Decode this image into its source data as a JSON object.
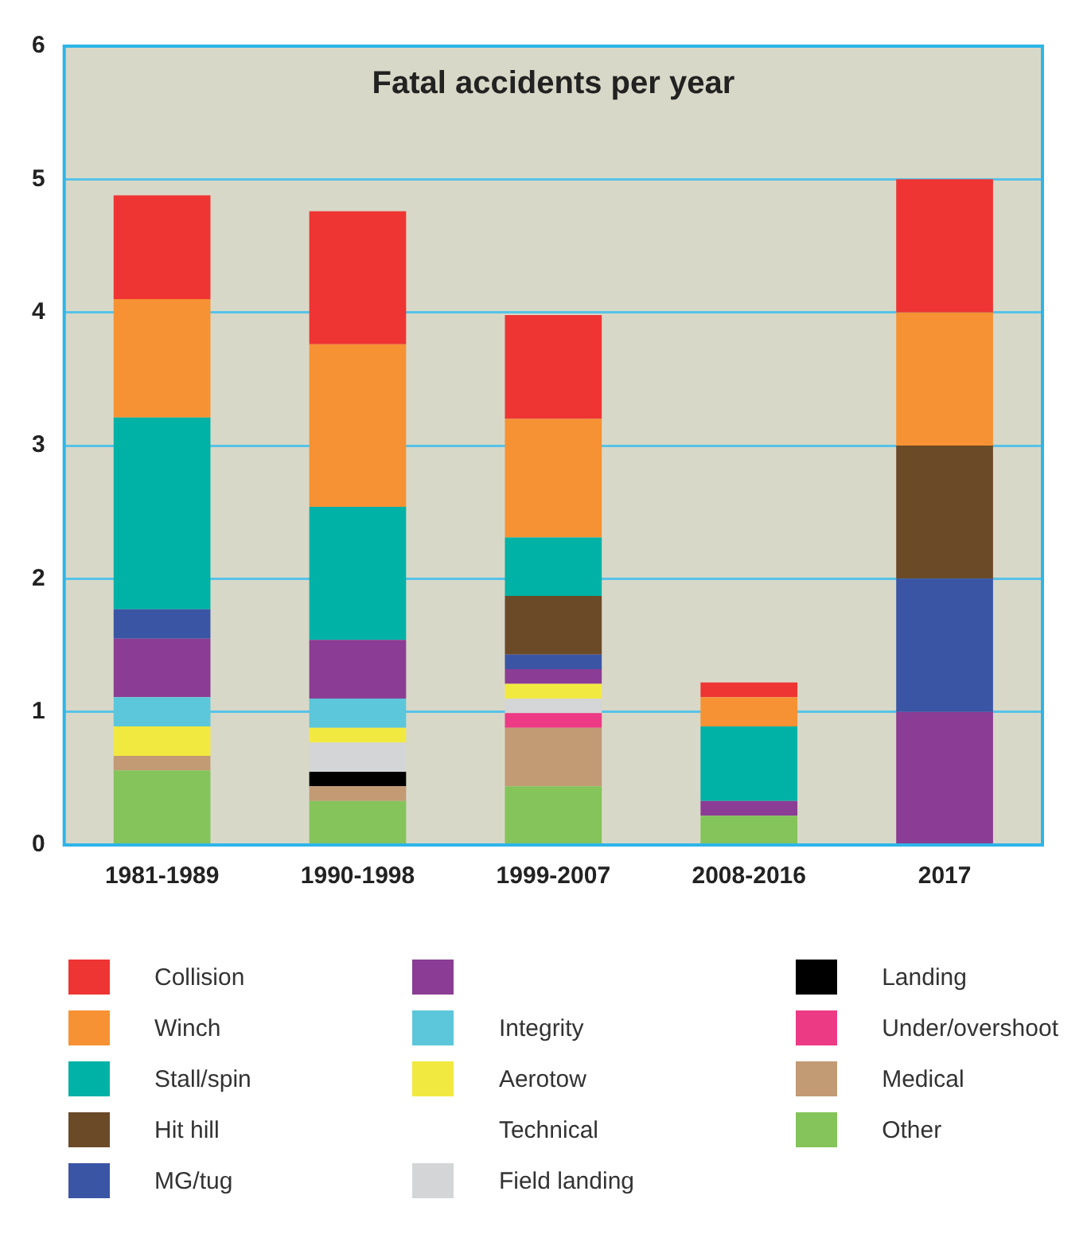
{
  "chart_data": {
    "type": "bar",
    "title": "Fatal accidents per year",
    "categories": [
      "1981-1989",
      "1990-1998",
      "1999-2007",
      "2008-2016",
      "2017"
    ],
    "stacked": true,
    "ylim": [
      0,
      6
    ],
    "yticks": [
      0,
      1,
      2,
      3,
      4,
      5,
      6
    ],
    "grid": "y",
    "legend": "bottom",
    "series": [
      {
        "name": "Other",
        "color": "#84c45a",
        "values": [
          0.56,
          0.33,
          0.44,
          0.22,
          null
        ]
      },
      {
        "name": "Medical",
        "color": "#c29a74",
        "values": [
          0.11,
          0.11,
          0.44,
          null,
          null
        ]
      },
      {
        "name": "Under/overshoot",
        "color": "#ec3a85",
        "values": [
          null,
          null,
          0.11,
          null,
          null
        ]
      },
      {
        "name": "Landing",
        "color": "#000000",
        "values": [
          null,
          0.11,
          null,
          null,
          null
        ]
      },
      {
        "name": "Field landing",
        "color": "#d4d5d6",
        "values": [
          null,
          0.22,
          0.11,
          null,
          null
        ]
      },
      {
        "name": "Technical",
        "values": [
          null,
          null,
          null,
          null,
          null
        ]
      },
      {
        "name": "Aerotow",
        "color": "#f2e940",
        "values": [
          0.22,
          0.11,
          0.11,
          null,
          null
        ]
      },
      {
        "name": "Integrity",
        "color": "#5cc7da",
        "values": [
          0.22,
          0.22,
          null,
          null,
          null
        ]
      },
      {
        "color": "#8b3c94",
        "values": [
          0.44,
          0.44,
          0.11,
          0.11,
          1
        ]
      },
      {
        "name": "MG/tug",
        "color": "#3b55a5",
        "values": [
          0.22,
          null,
          0.11,
          null,
          1
        ]
      },
      {
        "name": "Hit hill",
        "color": "#6b4a28",
        "values": [
          null,
          null,
          0.44,
          null,
          1
        ]
      },
      {
        "name": "Stall/spin",
        "color": "#00b2a6",
        "values": [
          1.44,
          1.0,
          0.44,
          0.56,
          null
        ]
      },
      {
        "name": "Winch",
        "color": "#f69233",
        "values": [
          0.89,
          1.22,
          0.89,
          0.22,
          1
        ]
      },
      {
        "name": "Collision",
        "color": "#ee3533",
        "values": [
          0.78,
          1.0,
          0.78,
          0.11,
          1
        ]
      }
    ]
  }
}
